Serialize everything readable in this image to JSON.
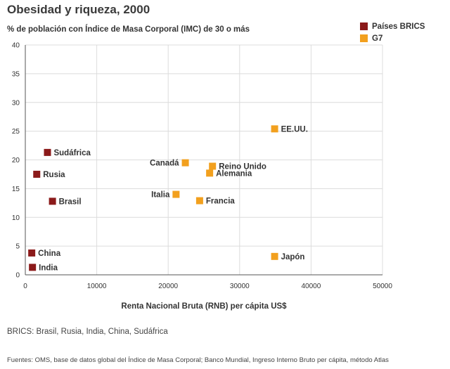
{
  "chart_data": {
    "type": "scatter",
    "title": "Obesidad y riqueza, 2000",
    "subtitle": "% de población con Índice de Masa Corporal (IMC) de 30 o más",
    "xlabel": "Renta Nacional Bruta (RNB) per cápita US$",
    "ylabel": "",
    "xlim": [
      0,
      50000
    ],
    "ylim": [
      0,
      40
    ],
    "x_ticks": [
      0,
      10000,
      20000,
      30000,
      40000,
      50000
    ],
    "y_ticks": [
      0,
      5,
      10,
      15,
      20,
      25,
      30,
      35,
      40
    ],
    "grid": true,
    "legend_position": "top-right",
    "series": [
      {
        "name": "Países BRICS",
        "color": "#8b1a1a",
        "points": [
          {
            "label": "Sudáfrica",
            "x": 3100,
            "y": 21.3
          },
          {
            "label": "Rusia",
            "x": 1600,
            "y": 17.5
          },
          {
            "label": "Brasil",
            "x": 3800,
            "y": 12.8
          },
          {
            "label": "China",
            "x": 900,
            "y": 3.8
          },
          {
            "label": "India",
            "x": 1000,
            "y": 1.3
          }
        ]
      },
      {
        "name": "G7",
        "color": "#f2a01e",
        "points": [
          {
            "label": "EE.UU.",
            "x": 34900,
            "y": 25.4
          },
          {
            "label": "Canadá",
            "x": 22400,
            "y": 19.5
          },
          {
            "label": "Reino Unido",
            "x": 26200,
            "y": 18.9
          },
          {
            "label": "Alemania",
            "x": 25800,
            "y": 17.7
          },
          {
            "label": "Italia",
            "x": 21100,
            "y": 14.0
          },
          {
            "label": "Francia",
            "x": 24400,
            "y": 12.9
          },
          {
            "label": "Japón",
            "x": 34900,
            "y": 3.2
          }
        ]
      }
    ]
  },
  "notes": {
    "brics": "BRICS: Brasil, Rusia, India, China, Sudáfrica",
    "source": "Fuentes: OMS, base de datos global del Índice de Masa Corporal; Banco Mundial, Ingreso Interno Bruto per cápita, método Atlas"
  }
}
